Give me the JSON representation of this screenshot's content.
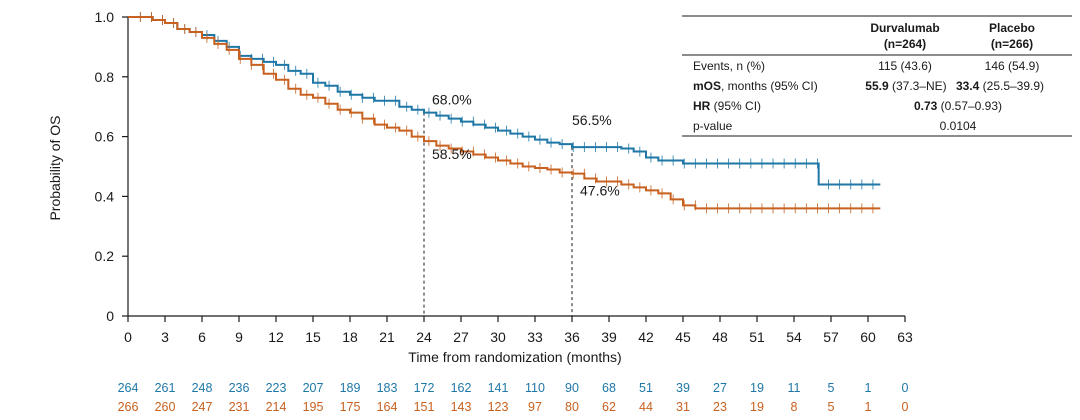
{
  "colors": {
    "durvalumab": "#1f77a6",
    "placebo": "#c8611f",
    "axis": "#1a1a1a"
  },
  "chart_data": {
    "type": "line",
    "title": "",
    "xlabel": "Time from randomization (months)",
    "ylabel": "Probability of OS",
    "xlim": [
      0,
      63
    ],
    "ylim": [
      0,
      1.0
    ],
    "x_ticks": [
      0,
      3,
      6,
      9,
      12,
      15,
      18,
      21,
      24,
      27,
      30,
      33,
      36,
      39,
      42,
      45,
      48,
      51,
      54,
      57,
      60,
      63
    ],
    "y_ticks": [
      {
        "value": 0,
        "label": "0"
      },
      {
        "value": 0.2,
        "label": "0.2"
      },
      {
        "value": 0.4,
        "label": "0.4"
      },
      {
        "value": 0.6,
        "label": "0.6"
      },
      {
        "value": 0.8,
        "label": "0.8"
      },
      {
        "value": 1.0,
        "label": "1.0"
      }
    ],
    "grid": false,
    "series": [
      {
        "name": "Durvalumab",
        "points": [
          [
            0,
            1.0
          ],
          [
            2,
            0.99
          ],
          [
            3,
            0.98
          ],
          [
            4,
            0.96
          ],
          [
            5,
            0.95
          ],
          [
            6,
            0.94
          ],
          [
            7,
            0.92
          ],
          [
            8,
            0.9
          ],
          [
            9,
            0.87
          ],
          [
            10,
            0.86
          ],
          [
            11,
            0.85
          ],
          [
            12,
            0.84
          ],
          [
            13,
            0.82
          ],
          [
            14,
            0.81
          ],
          [
            15,
            0.78
          ],
          [
            16,
            0.77
          ],
          [
            17,
            0.75
          ],
          [
            18,
            0.74
          ],
          [
            19,
            0.73
          ],
          [
            20,
            0.72
          ],
          [
            21,
            0.72
          ],
          [
            22,
            0.7
          ],
          [
            23,
            0.69
          ],
          [
            24,
            0.68
          ],
          [
            25,
            0.67
          ],
          [
            26,
            0.66
          ],
          [
            27,
            0.65
          ],
          [
            28,
            0.64
          ],
          [
            29,
            0.63
          ],
          [
            30,
            0.62
          ],
          [
            31,
            0.61
          ],
          [
            32,
            0.6
          ],
          [
            33,
            0.59
          ],
          [
            34,
            0.58
          ],
          [
            35,
            0.575
          ],
          [
            36,
            0.565
          ],
          [
            38,
            0.565
          ],
          [
            40,
            0.56
          ],
          [
            41,
            0.55
          ],
          [
            42,
            0.53
          ],
          [
            43,
            0.52
          ],
          [
            45,
            0.51
          ],
          [
            48,
            0.51
          ],
          [
            51,
            0.51
          ],
          [
            54,
            0.51
          ],
          [
            56,
            0.51
          ],
          [
            56,
            0.44
          ],
          [
            58,
            0.44
          ],
          [
            61,
            0.44
          ]
        ],
        "annotation": {
          "x": 24,
          "y": 0.68,
          "label": "68.0%"
        },
        "annotation2": {
          "x": 36,
          "y": 0.565,
          "label": "56.5%"
        }
      },
      {
        "name": "Placebo",
        "points": [
          [
            0,
            1.0
          ],
          [
            2,
            0.99
          ],
          [
            3,
            0.98
          ],
          [
            4,
            0.96
          ],
          [
            5,
            0.95
          ],
          [
            6,
            0.93
          ],
          [
            7,
            0.91
          ],
          [
            8,
            0.89
          ],
          [
            9,
            0.86
          ],
          [
            10,
            0.84
          ],
          [
            11,
            0.81
          ],
          [
            12,
            0.79
          ],
          [
            13,
            0.76
          ],
          [
            14,
            0.74
          ],
          [
            15,
            0.73
          ],
          [
            16,
            0.71
          ],
          [
            17,
            0.69
          ],
          [
            18,
            0.68
          ],
          [
            19,
            0.66
          ],
          [
            20,
            0.64
          ],
          [
            21,
            0.63
          ],
          [
            22,
            0.62
          ],
          [
            23,
            0.6
          ],
          [
            24,
            0.585
          ],
          [
            25,
            0.57
          ],
          [
            26,
            0.56
          ],
          [
            27,
            0.55
          ],
          [
            28,
            0.54
          ],
          [
            29,
            0.53
          ],
          [
            30,
            0.52
          ],
          [
            31,
            0.51
          ],
          [
            32,
            0.5
          ],
          [
            33,
            0.495
          ],
          [
            34,
            0.49
          ],
          [
            35,
            0.48
          ],
          [
            36,
            0.476
          ],
          [
            37,
            0.46
          ],
          [
            38,
            0.45
          ],
          [
            40,
            0.44
          ],
          [
            41,
            0.43
          ],
          [
            42,
            0.42
          ],
          [
            43,
            0.41
          ],
          [
            44,
            0.39
          ],
          [
            45,
            0.37
          ],
          [
            46,
            0.36
          ],
          [
            48,
            0.36
          ],
          [
            51,
            0.36
          ],
          [
            54,
            0.36
          ],
          [
            57,
            0.36
          ],
          [
            61,
            0.36
          ]
        ],
        "annotation": {
          "x": 24,
          "y": 0.585,
          "label": "58.5%"
        },
        "annotation2": {
          "x": 36,
          "y": 0.476,
          "label": "47.6%"
        }
      }
    ],
    "reference_lines_x": [
      24,
      36
    ],
    "risk_table": {
      "durvalumab": [
        264,
        261,
        248,
        236,
        223,
        207,
        189,
        183,
        172,
        162,
        141,
        110,
        90,
        68,
        51,
        39,
        27,
        19,
        11,
        5,
        1,
        0
      ],
      "placebo": [
        266,
        260,
        247,
        231,
        214,
        195,
        175,
        164,
        151,
        143,
        123,
        97,
        80,
        62,
        44,
        31,
        23,
        19,
        8,
        5,
        1,
        0
      ]
    }
  },
  "summary_table": {
    "col1_name": "Durvalumab",
    "col1_n": "(n=264)",
    "col2_name": "Placebo",
    "col2_n": "(n=266)",
    "rows": [
      {
        "label": "Events, n (%)",
        "label_bold": "",
        "v1": "115 (43.6)",
        "v2": "146 (54.9)"
      },
      {
        "label_bold": "mOS",
        "label": ", months (95% CI)",
        "v1_bold": "55.9",
        "v1": " (37.3–NE)",
        "v2_bold": "33.4",
        "v2": " (25.5–39.9)"
      },
      {
        "label_bold": "HR",
        "label": " (95% CI)",
        "span_bold": "0.73",
        "span": " (0.57–0.93)"
      },
      {
        "label": "p-value",
        "span": "0.0104"
      }
    ]
  }
}
